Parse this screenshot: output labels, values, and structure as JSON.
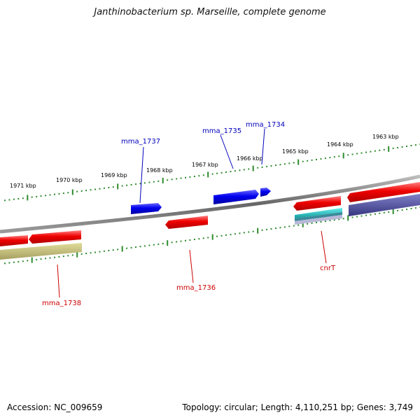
{
  "title": "Janthinobacterium sp. Marseille, complete genome",
  "footer": {
    "accession": "Accession: NC_009659",
    "summary": "Topology: circular; Length: 4,110,251 bp; Genes: 3,749"
  },
  "colors": {
    "forward_gene": "#0000ee",
    "reverse_gene": "#ee0000",
    "forward_label": "#0000bb",
    "reverse_label": "#cc0000",
    "backbone": "#7a7a7a",
    "ticks": "#2e8b2e",
    "track_khaki": "#bdb76b",
    "track_cyan": "#22cccc",
    "track_slate": "#4a4a9a"
  },
  "scale_labels": [
    "1971 kbp",
    "1970 kbp",
    "1969 kbp",
    "1968 kbp",
    "1967 kbp",
    "1966 kbp",
    "1965 kbp",
    "1964 kbp",
    "1963 kbp"
  ],
  "gene_labels": {
    "forward": [
      "mma_1737",
      "mma_1735",
      "mma_1734"
    ],
    "reverse": [
      "mma_1738",
      "mma_1736",
      "cnrT"
    ]
  }
}
